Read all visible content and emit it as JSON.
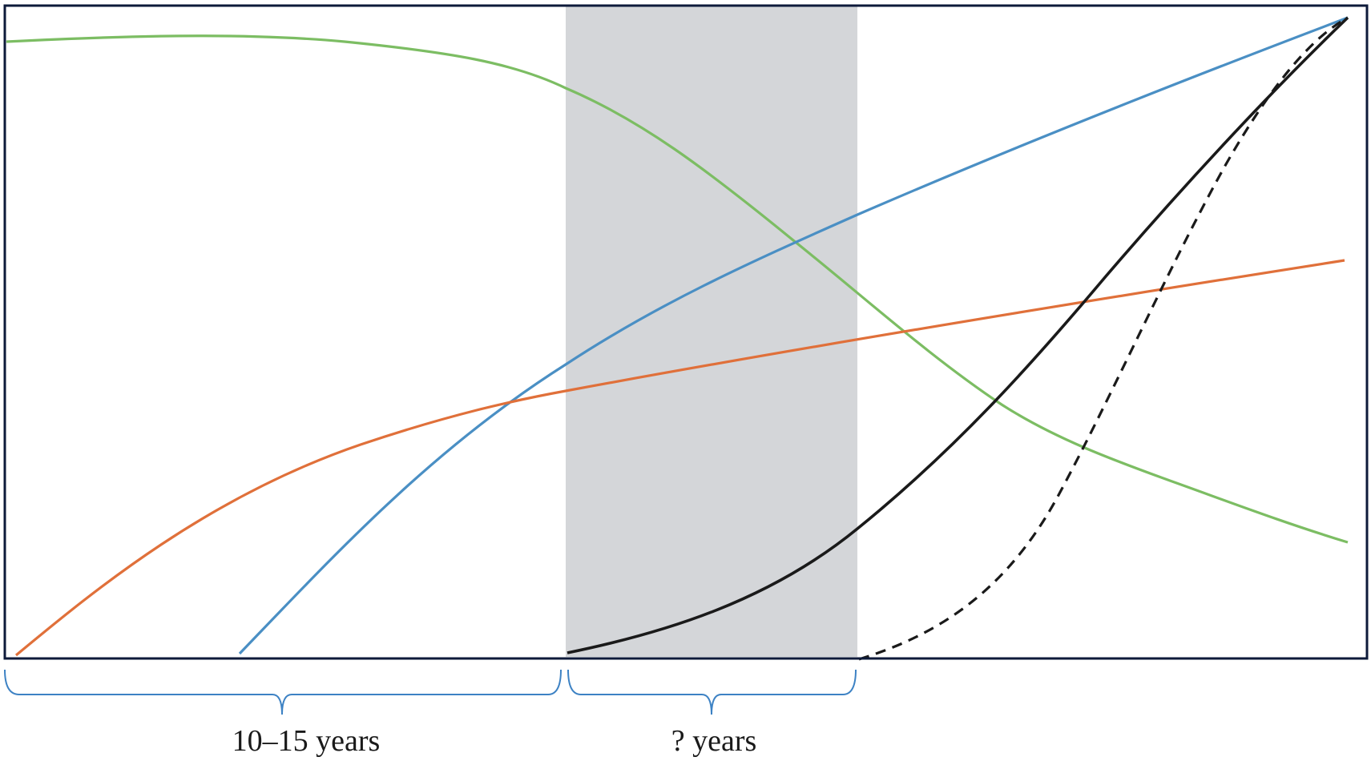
{
  "colors": {
    "frame": "#0d1a3a",
    "shaded_band": "#d4d6d9",
    "green_curve": "#7cbd63",
    "blue_curve": "#4a8fc4",
    "orange_curve": "#e0703a",
    "black_curve": "#1a1a1a",
    "brace": "#3d82c4"
  },
  "braces": [
    {
      "label": "10‒15 years"
    },
    {
      "label": "? years"
    }
  ]
}
